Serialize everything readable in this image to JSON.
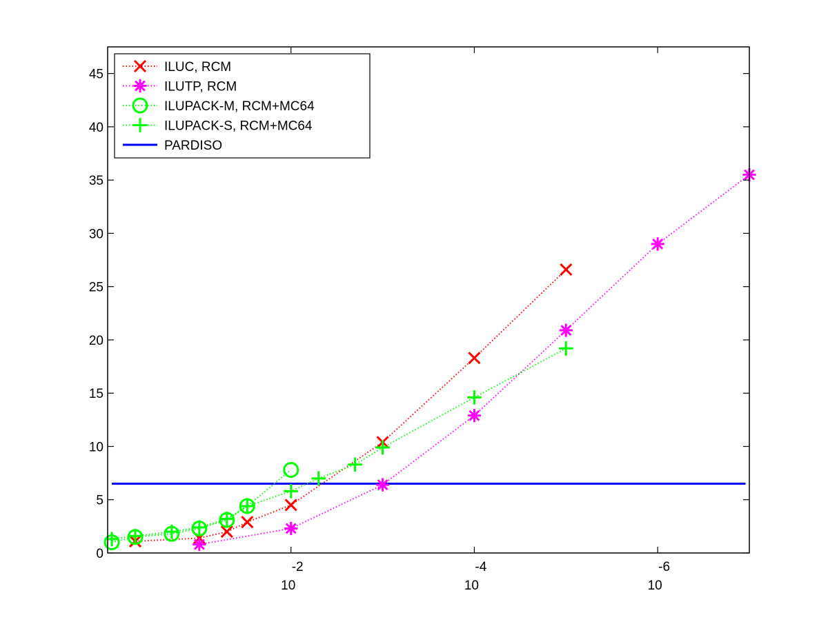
{
  "chart_data": {
    "type": "line",
    "title": "",
    "xlabel": "",
    "ylabel": "",
    "x_scale": "log",
    "x_reversed": true,
    "xlim": [
      1.0,
      1e-07
    ],
    "ylim": [
      0,
      47.5
    ],
    "grid": false,
    "legend_position": "top-left",
    "x_ticks": [
      {
        "value": 0.01,
        "base": "10",
        "exponent": "-2"
      },
      {
        "value": 0.0001,
        "base": "10",
        "exponent": "-4"
      },
      {
        "value": 1e-06,
        "base": "10",
        "exponent": "-6"
      }
    ],
    "y_ticks": [
      {
        "value": 0,
        "label": "0"
      },
      {
        "value": 5,
        "label": "5"
      },
      {
        "value": 10,
        "label": "10"
      },
      {
        "value": 15,
        "label": "15"
      },
      {
        "value": 20,
        "label": "20"
      },
      {
        "value": 25,
        "label": "25"
      },
      {
        "value": 30,
        "label": "30"
      },
      {
        "value": 35,
        "label": "35"
      },
      {
        "value": 40,
        "label": "40"
      },
      {
        "value": 45,
        "label": "45"
      }
    ],
    "series": [
      {
        "name": "ILUC, RCM",
        "color": "#ff0000",
        "marker": "x-mark",
        "line": "dotted",
        "x": [
          0.5,
          0.1,
          0.05,
          0.03,
          0.01,
          0.001,
          0.0001,
          1e-05
        ],
        "y": [
          1.1,
          1.4,
          2.0,
          2.9,
          4.5,
          10.4,
          18.3,
          26.6
        ]
      },
      {
        "name": "ILUTP, RCM",
        "color": "#ff00ff",
        "marker": "asterisk",
        "line": "dotted",
        "x": [
          0.1,
          0.01,
          0.001,
          0.0001,
          1e-05,
          1e-06,
          1e-07
        ],
        "y": [
          0.8,
          2.3,
          6.4,
          12.9,
          20.9,
          29.0,
          35.5
        ]
      },
      {
        "name": "ILUPACK-M, RCM+MC64",
        "color": "#00ff00",
        "marker": "circle",
        "line": "dotted",
        "x": [
          0.9,
          0.5,
          0.2,
          0.1,
          0.05,
          0.03,
          0.01
        ],
        "y": [
          1.0,
          1.5,
          1.8,
          2.3,
          3.1,
          4.4,
          7.8
        ]
      },
      {
        "name": "ILUPACK-S, RCM+MC64",
        "color": "#00ff00",
        "marker": "plus",
        "line": "dotted",
        "x": [
          0.9,
          0.5,
          0.2,
          0.1,
          0.05,
          0.03,
          0.01,
          0.005,
          0.002,
          0.001,
          0.0001,
          1e-05
        ],
        "y": [
          1.3,
          1.6,
          2.0,
          2.4,
          3.2,
          4.4,
          5.8,
          7.0,
          8.3,
          9.9,
          14.6,
          19.2
        ]
      }
    ],
    "reference_line": {
      "name": "PARDISO",
      "color": "#0000ff",
      "y": 6.5
    }
  }
}
